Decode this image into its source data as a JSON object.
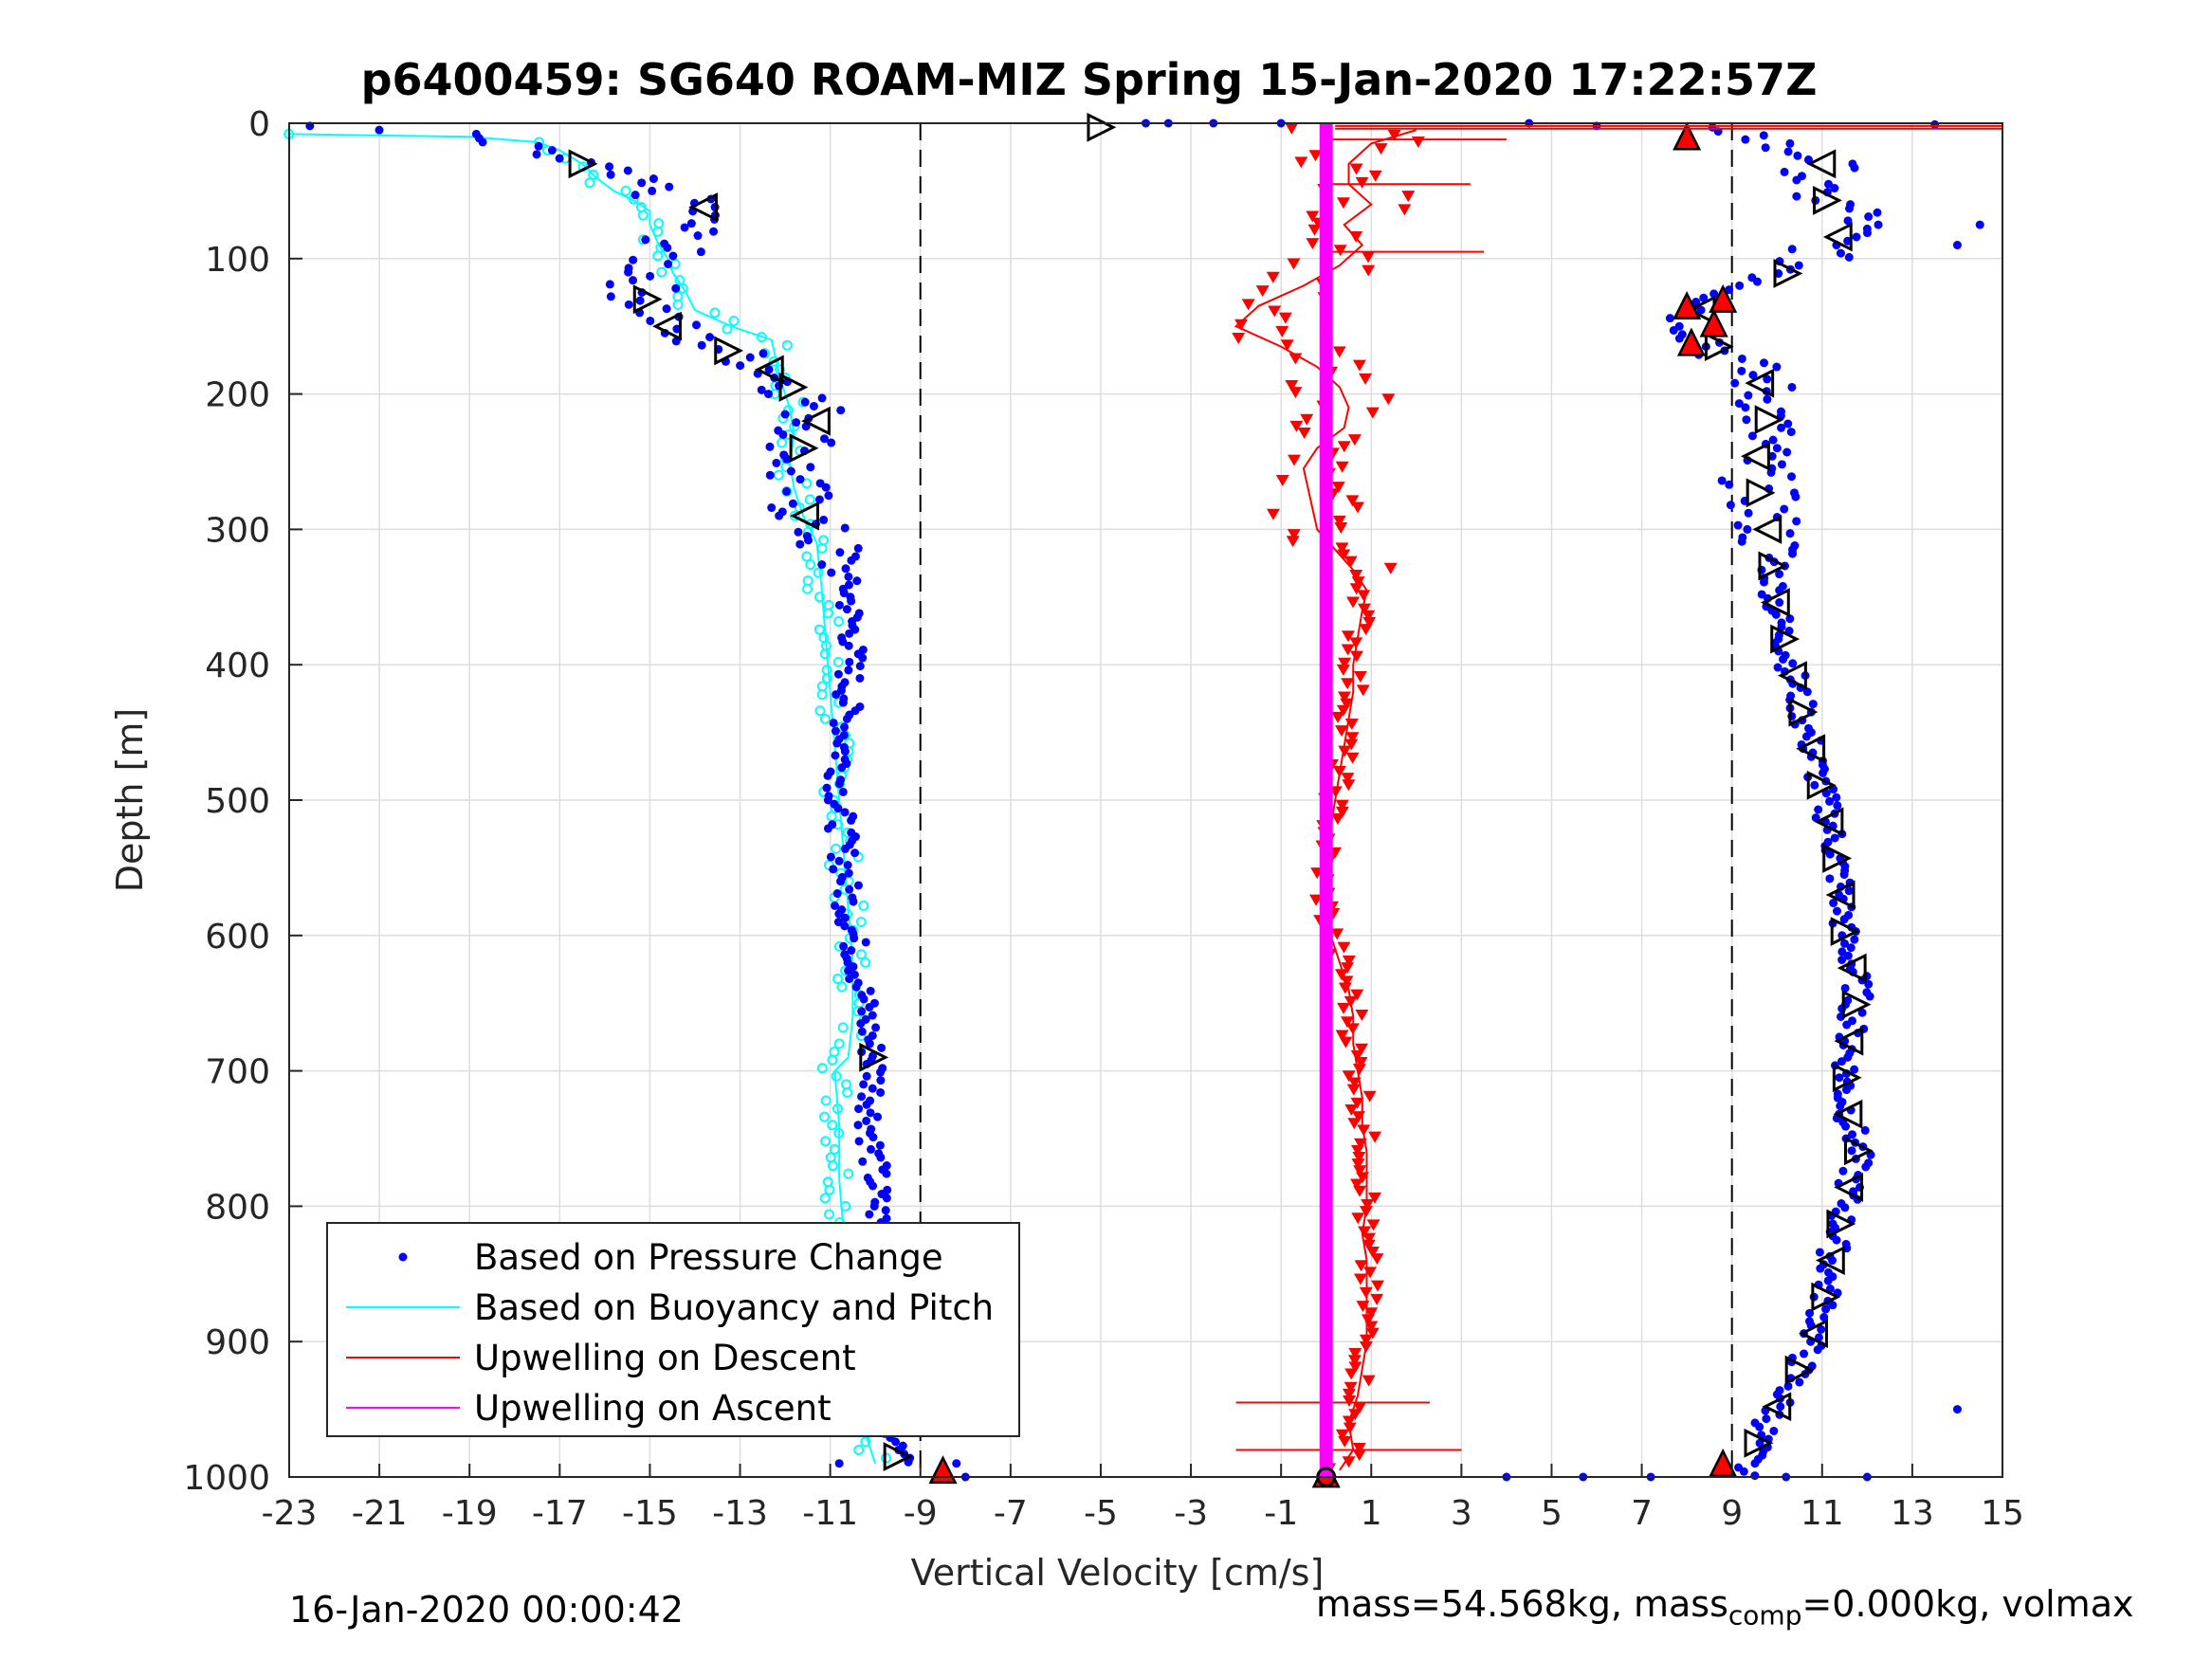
{
  "chart_data": {
    "type": "scatter",
    "title": "p6400459: SG640 ROAM-MIZ Spring 15-Jan-2020 17:22:57Z",
    "xlabel": "Vertical Velocity [cm/s]",
    "ylabel": "Depth [m]",
    "xlim": [
      -23,
      15
    ],
    "ylim": [
      0,
      1000
    ],
    "y_reversed": true,
    "xticks": [
      "-23",
      "-21",
      "-19",
      "-17",
      "-15",
      "-13",
      "-11",
      "-9",
      "-7",
      "-5",
      "-3",
      "-1",
      "1",
      "3",
      "5",
      "7",
      "9",
      "11",
      "13",
      "15"
    ],
    "yticks": [
      "0",
      "100",
      "200",
      "300",
      "400",
      "500",
      "600",
      "700",
      "800",
      "900",
      "1000"
    ],
    "grid": true,
    "legend_position": "bottom-left",
    "reference_lines": [
      -9,
      9
    ],
    "series": [
      {
        "name": "Based on Pressure Change",
        "color": "#0000ff",
        "descent": [
          [
            -22.8,
            2
          ],
          [
            -21,
            5
          ],
          [
            -19.5,
            8
          ],
          [
            -18.5,
            15
          ],
          [
            -17.5,
            22
          ],
          [
            -16.5,
            30
          ],
          [
            -15.8,
            40
          ],
          [
            -15,
            48
          ],
          [
            -14.5,
            55
          ],
          [
            -13.8,
            62
          ],
          [
            -14,
            70
          ],
          [
            -14.2,
            80
          ],
          [
            -14.5,
            90
          ],
          [
            -14.8,
            100
          ],
          [
            -15,
            110
          ],
          [
            -15.2,
            125
          ],
          [
            -14.8,
            140
          ],
          [
            -14.5,
            155
          ],
          [
            -13.5,
            165
          ],
          [
            -12.5,
            178
          ],
          [
            -12,
            190
          ],
          [
            -11.5,
            205
          ],
          [
            -11.3,
            220
          ],
          [
            -11.6,
            240
          ],
          [
            -11.9,
            260
          ],
          [
            -11.7,
            280
          ],
          [
            -11.4,
            300
          ],
          [
            -10.9,
            320
          ],
          [
            -10.6,
            345
          ],
          [
            -10.5,
            380
          ],
          [
            -10.6,
            420
          ],
          [
            -10.7,
            460
          ],
          [
            -10.8,
            500
          ],
          [
            -10.7,
            540
          ],
          [
            -10.6,
            580
          ],
          [
            -10.4,
            620
          ],
          [
            -10.2,
            660
          ],
          [
            -10,
            700
          ],
          [
            -10.1,
            740
          ],
          [
            -10,
            780
          ],
          [
            -9.9,
            820
          ],
          [
            -9.8,
            860
          ],
          [
            -9.7,
            900
          ],
          [
            -9.8,
            930
          ],
          [
            -9.6,
            960
          ],
          [
            -9.5,
            990
          ]
        ],
        "ascent": [
          [
            9.2,
            1000
          ],
          [
            9.8,
            960
          ],
          [
            10.5,
            920
          ],
          [
            11,
            880
          ],
          [
            11.2,
            840
          ],
          [
            11.5,
            800
          ],
          [
            11.8,
            760
          ],
          [
            11.5,
            720
          ],
          [
            11.6,
            680
          ],
          [
            11.8,
            640
          ],
          [
            11.5,
            600
          ],
          [
            11.4,
            560
          ],
          [
            11.2,
            520
          ],
          [
            10.9,
            480
          ],
          [
            10.6,
            440
          ],
          [
            10.3,
            400
          ],
          [
            10,
            360
          ],
          [
            9.9,
            330
          ],
          [
            9.8,
            300
          ],
          [
            9.6,
            270
          ],
          [
            9.5,
            250
          ],
          [
            9.7,
            230
          ],
          [
            9.9,
            210
          ],
          [
            9.6,
            190
          ],
          [
            9.1,
            175
          ],
          [
            8.5,
            160
          ],
          [
            8.2,
            140
          ],
          [
            9.2,
            125
          ],
          [
            10.3,
            110
          ],
          [
            11,
            95
          ],
          [
            11.5,
            80
          ],
          [
            12,
            70
          ],
          [
            11.3,
            60
          ],
          [
            10.5,
            48
          ],
          [
            11,
            35
          ],
          [
            11,
            25
          ],
          [
            10,
            18
          ],
          [
            9.5,
            10
          ],
          [
            9,
            3
          ]
        ]
      },
      {
        "name": "Based on Buoyancy and Pitch",
        "color": "#00ffff",
        "values": [
          [
            -23,
            8
          ],
          [
            -19,
            10
          ],
          [
            -17.5,
            14
          ],
          [
            -17,
            20
          ],
          [
            -16.5,
            30
          ],
          [
            -16.2,
            40
          ],
          [
            -15.8,
            50
          ],
          [
            -15.3,
            58
          ],
          [
            -15,
            65
          ],
          [
            -15,
            75
          ],
          [
            -14.8,
            90
          ],
          [
            -14.6,
            100
          ],
          [
            -14.5,
            110
          ],
          [
            -14.2,
            125
          ],
          [
            -14,
            138
          ],
          [
            -13.2,
            150
          ],
          [
            -12.3,
            160
          ],
          [
            -12.2,
            175
          ],
          [
            -12.1,
            190
          ],
          [
            -11.9,
            210
          ],
          [
            -11.8,
            230
          ],
          [
            -11.9,
            250
          ],
          [
            -11.8,
            270
          ],
          [
            -11.6,
            290
          ],
          [
            -11.3,
            310
          ],
          [
            -11.2,
            340
          ],
          [
            -11.1,
            380
          ],
          [
            -11,
            420
          ],
          [
            -10.9,
            460
          ],
          [
            -10.8,
            500
          ],
          [
            -10.7,
            540
          ],
          [
            -10.6,
            580
          ],
          [
            -10.5,
            620
          ],
          [
            -10.5,
            660
          ],
          [
            -10.6,
            690
          ],
          [
            -10.9,
            700
          ],
          [
            -10.8,
            740
          ],
          [
            -10.8,
            780
          ],
          [
            -10.7,
            820
          ],
          [
            -10.6,
            860
          ],
          [
            -10.6,
            900
          ],
          [
            -10.5,
            930
          ],
          [
            -10.3,
            960
          ],
          [
            -10,
            990
          ]
        ]
      },
      {
        "name": "Upwelling on Descent",
        "color": "#ff0000",
        "values": [
          [
            2,
            5
          ],
          [
            1,
            15
          ],
          [
            0.5,
            30
          ],
          [
            0.5,
            45
          ],
          [
            1,
            60
          ],
          [
            0.4,
            75
          ],
          [
            0.8,
            90
          ],
          [
            0.3,
            105
          ],
          [
            -0.5,
            120
          ],
          [
            -1.5,
            135
          ],
          [
            -2,
            150
          ],
          [
            -1,
            165
          ],
          [
            -0.2,
            180
          ],
          [
            0.3,
            195
          ],
          [
            0.5,
            210
          ],
          [
            0.4,
            225
          ],
          [
            -0.2,
            240
          ],
          [
            -0.5,
            255
          ],
          [
            -0.4,
            270
          ],
          [
            -0.3,
            285
          ],
          [
            -0.2,
            300
          ],
          [
            0.2,
            315
          ],
          [
            0.6,
            330
          ],
          [
            0.9,
            345
          ],
          [
            0.8,
            360
          ],
          [
            0.7,
            380
          ],
          [
            0.6,
            400
          ],
          [
            0.6,
            420
          ],
          [
            0.5,
            440
          ],
          [
            0.4,
            460
          ],
          [
            0.3,
            480
          ],
          [
            0.2,
            500
          ],
          [
            0.1,
            520
          ],
          [
            0,
            540
          ],
          [
            -0.1,
            560
          ],
          [
            0,
            580
          ],
          [
            0.1,
            600
          ],
          [
            0.3,
            620
          ],
          [
            0.5,
            640
          ],
          [
            0.6,
            660
          ],
          [
            0.6,
            680
          ],
          [
            0.7,
            700
          ],
          [
            0.8,
            720
          ],
          [
            0.8,
            740
          ],
          [
            0.9,
            760
          ],
          [
            0.9,
            780
          ],
          [
            0.9,
            800
          ],
          [
            0.8,
            820
          ],
          [
            0.9,
            840
          ],
          [
            0.9,
            860
          ],
          [
            0.9,
            880
          ],
          [
            0.9,
            900
          ],
          [
            0.8,
            920
          ],
          [
            0.7,
            940
          ],
          [
            0.5,
            960
          ],
          [
            0.6,
            980
          ],
          [
            0.3,
            995
          ]
        ]
      },
      {
        "name": "Upwelling on Ascent",
        "color": "#ff00ff",
        "values": [
          [
            0,
            0
          ],
          [
            0,
            1000
          ]
        ]
      }
    ]
  },
  "footer": {
    "left": "16-Jan-2020 00:00:42",
    "right_prefix": "mass=54.568kg, mass",
    "right_sub": "comp",
    "right_suffix": "=0.000kg, volmax"
  }
}
